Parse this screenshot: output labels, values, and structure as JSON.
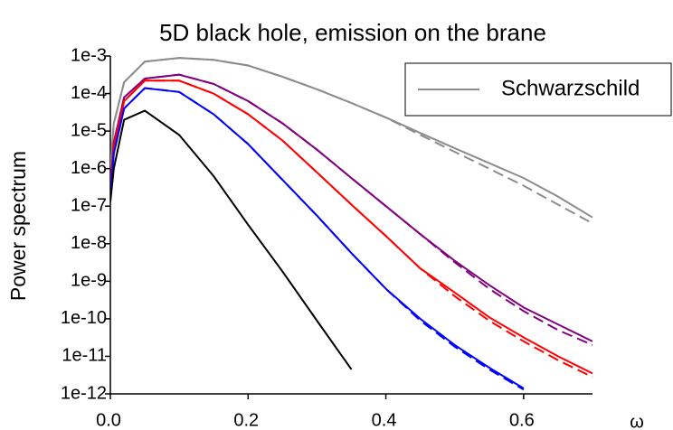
{
  "chart_data": {
    "type": "line",
    "title": "5D black hole, emission on the brane",
    "ylabel": "Power spectrum",
    "xlabel": "ω",
    "log_y": true,
    "legend": "upper right",
    "x": [
      0,
      0.005,
      0.02,
      0.05,
      0.1,
      0.15,
      0.2,
      0.25,
      0.3,
      0.35,
      0.4,
      0.45,
      0.5,
      0.55,
      0.6,
      0.65,
      0.7
    ],
    "xlim": [
      0,
      0.7
    ],
    "xticks": [
      {
        "value": 0,
        "label": "0.0"
      },
      0.2,
      0.4,
      0.6
    ],
    "ylim": [
      1e-12,
      0.001
    ],
    "yticks": [
      {
        "value": 0.001,
        "label": "1e-3"
      },
      {
        "value": 0.0001,
        "label": "1e-4"
      },
      {
        "value": 1e-05,
        "label": "1e-5"
      },
      {
        "value": 1e-06,
        "label": "1e-6"
      },
      {
        "value": 1e-07,
        "label": "1e-7"
      },
      {
        "value": 1e-08,
        "label": "1e-8"
      },
      {
        "value": 1e-09,
        "label": "1e-9"
      },
      {
        "value": 1e-10,
        "label": "1e-10"
      },
      {
        "value": 1e-11,
        "label": "1e-11"
      },
      {
        "value": 1e-12,
        "label": "1e-12"
      }
    ],
    "series": [
      {
        "name": "Schwarzschild",
        "color": "#8c8c8c",
        "values": [
          1e-06,
          1.6e-05,
          0.0002,
          0.00071,
          0.00089,
          0.00079,
          0.00056,
          0.00028,
          0.00013,
          5.6e-05,
          2.3e-05,
          8.9e-06,
          3.5e-06,
          1.4e-06,
          5.6e-07,
          1.8e-07,
          5e-08
        ]
      },
      {
        "color": "#8c8c8c",
        "dashed": true,
        "values": [
          1e-06,
          1.6e-05,
          0.0002,
          0.00071,
          0.00089,
          0.00079,
          0.00056,
          0.00028,
          0.00013,
          5.6e-05,
          2.3e-05,
          7.9e-06,
          2.8e-06,
          1e-06,
          3.5e-07,
          1.1e-07,
          3.5e-08
        ]
      },
      {
        "color": "#800080",
        "values": [
          3.2e-07,
          5e-06,
          7.9e-05,
          0.00025,
          0.00032,
          0.00018,
          6.3e-05,
          1.6e-05,
          3.2e-06,
          5.6e-07,
          1e-07,
          1.8e-08,
          3.5e-09,
          7.9e-10,
          2e-10,
          7.1e-11,
          2.5e-11
        ]
      },
      {
        "color": "#800080",
        "dashed": true,
        "values": [
          3.2e-07,
          5e-06,
          7.9e-05,
          0.00025,
          0.00032,
          0.00018,
          6.3e-05,
          1.6e-05,
          3.2e-06,
          5.6e-07,
          1e-07,
          1.8e-08,
          3.2e-09,
          6.3e-10,
          1.6e-10,
          5e-11,
          2e-11
        ]
      },
      {
        "color": "#ff0000",
        "values": [
          2.5e-07,
          4e-06,
          6.3e-05,
          0.00022,
          0.00022,
          0.0001,
          2.8e-05,
          5.6e-06,
          7.9e-07,
          1.1e-07,
          1.6e-08,
          2.2e-09,
          5e-10,
          1.1e-10,
          3.2e-11,
          1e-11,
          3.5e-12
        ]
      },
      {
        "color": "#ff0000",
        "dashed": true,
        "values": [
          2.5e-07,
          4e-06,
          6.3e-05,
          0.00022,
          0.00022,
          0.0001,
          2.8e-05,
          5.6e-06,
          7.9e-07,
          1.1e-07,
          1.6e-08,
          2.2e-09,
          4e-10,
          8.9e-11,
          2.5e-11,
          7.9e-12,
          2.8e-12
        ]
      },
      {
        "color": "#0000ff",
        "values": [
          2e-07,
          2.5e-06,
          4e-05,
          0.00014,
          0.00011,
          2.8e-05,
          4.5e-06,
          5e-07,
          5.6e-08,
          5.6e-09,
          6.3e-10,
          1e-10,
          2e-11,
          5e-12,
          1.4e-12,
          null,
          null
        ]
      },
      {
        "color": "#0000ff",
        "dashed": true,
        "values": [
          2e-07,
          2.5e-06,
          4e-05,
          0.00014,
          0.00011,
          2.8e-05,
          4.5e-06,
          5e-07,
          5.6e-08,
          5.6e-09,
          6.3e-10,
          9e-11,
          1.8e-11,
          4.5e-12,
          1.3e-12,
          null,
          null
        ]
      },
      {
        "color": "#000000",
        "values": [
          1.3e-07,
          1e-06,
          2e-05,
          3.5e-05,
          7.9e-06,
          6.3e-07,
          3.2e-08,
          1.8e-09,
          8.9e-11,
          4.5e-12,
          null,
          null,
          null,
          null,
          null,
          null,
          null
        ]
      }
    ]
  }
}
